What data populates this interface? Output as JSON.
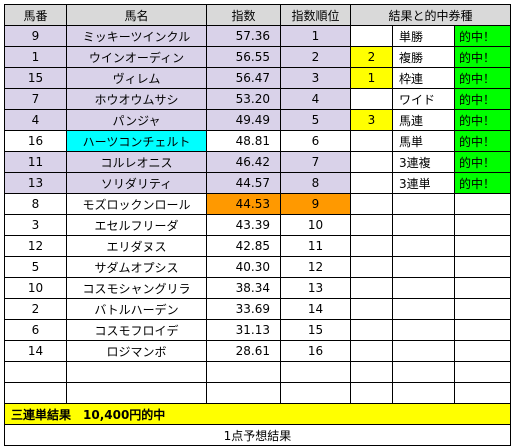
{
  "headers": [
    "馬番",
    "馬名",
    "指数",
    "指数順位",
    "結果と的中券種"
  ],
  "horses": [
    {
      "no": "9",
      "name": "ミッキーツインクル",
      "index": "57.36",
      "rank": "1",
      "style": "lav"
    },
    {
      "no": "1",
      "name": "ウインオーディン",
      "index": "56.55",
      "rank": "2",
      "style": "lav"
    },
    {
      "no": "15",
      "name": "ヴィレム",
      "index": "56.47",
      "rank": "3",
      "style": "lav"
    },
    {
      "no": "7",
      "name": "ホウオウムサシ",
      "index": "53.20",
      "rank": "4",
      "style": "lav"
    },
    {
      "no": "4",
      "name": "パンジャ",
      "index": "49.49",
      "rank": "5",
      "style": "lav"
    },
    {
      "no": "16",
      "name": "ハーツコンチェルト",
      "index": "48.81",
      "rank": "6",
      "style": "cyan"
    },
    {
      "no": "11",
      "name": "コルレオニス",
      "index": "46.42",
      "rank": "7",
      "style": "lav"
    },
    {
      "no": "13",
      "name": "ソリダリティ",
      "index": "44.57",
      "rank": "8",
      "style": "lav"
    },
    {
      "no": "8",
      "name": "モズロックンロール",
      "index": "44.53",
      "rank": "9",
      "style": "orange"
    },
    {
      "no": "3",
      "name": "エセルフリーダ",
      "index": "43.39",
      "rank": "10",
      "style": ""
    },
    {
      "no": "12",
      "name": "エリダヌス",
      "index": "42.85",
      "rank": "11",
      "style": ""
    },
    {
      "no": "5",
      "name": "サダムオプシス",
      "index": "40.30",
      "rank": "12",
      "style": ""
    },
    {
      "no": "10",
      "name": "コスモシャングリラ",
      "index": "38.34",
      "rank": "13",
      "style": ""
    },
    {
      "no": "2",
      "name": "バトルハーデン",
      "index": "33.69",
      "rank": "14",
      "style": ""
    },
    {
      "no": "6",
      "name": "コスモフロイデ",
      "index": "31.13",
      "rank": "15",
      "style": ""
    },
    {
      "no": "14",
      "name": "ロジマンボ",
      "index": "28.61",
      "rank": "16",
      "style": ""
    }
  ],
  "results": [
    {
      "place": "",
      "bet": "単勝",
      "hit": "的中！"
    },
    {
      "place": "2",
      "bet": "複勝",
      "hit": "的中！"
    },
    {
      "place": "1",
      "bet": "枠連",
      "hit": "的中！"
    },
    {
      "place": "",
      "bet": "ワイド",
      "hit": "的中！"
    },
    {
      "place": "3",
      "bet": "馬連",
      "hit": "的中！"
    },
    {
      "place": "",
      "bet": "馬単",
      "hit": "的中！"
    },
    {
      "place": "",
      "bet": "3連複",
      "hit": "的中！"
    },
    {
      "place": "",
      "bet": "3連単",
      "hit": "的中！"
    }
  ],
  "summary": {
    "result_line": "三連単結果　10,400円的中",
    "caption": "1点予想結果"
  },
  "colors": {
    "lavender": "#d9d2e9",
    "cyan": "#00ffff",
    "orange": "#ff9900",
    "yellow": "#ffff00",
    "green": "#00ff00",
    "header_gray": "#d9d9d9"
  }
}
